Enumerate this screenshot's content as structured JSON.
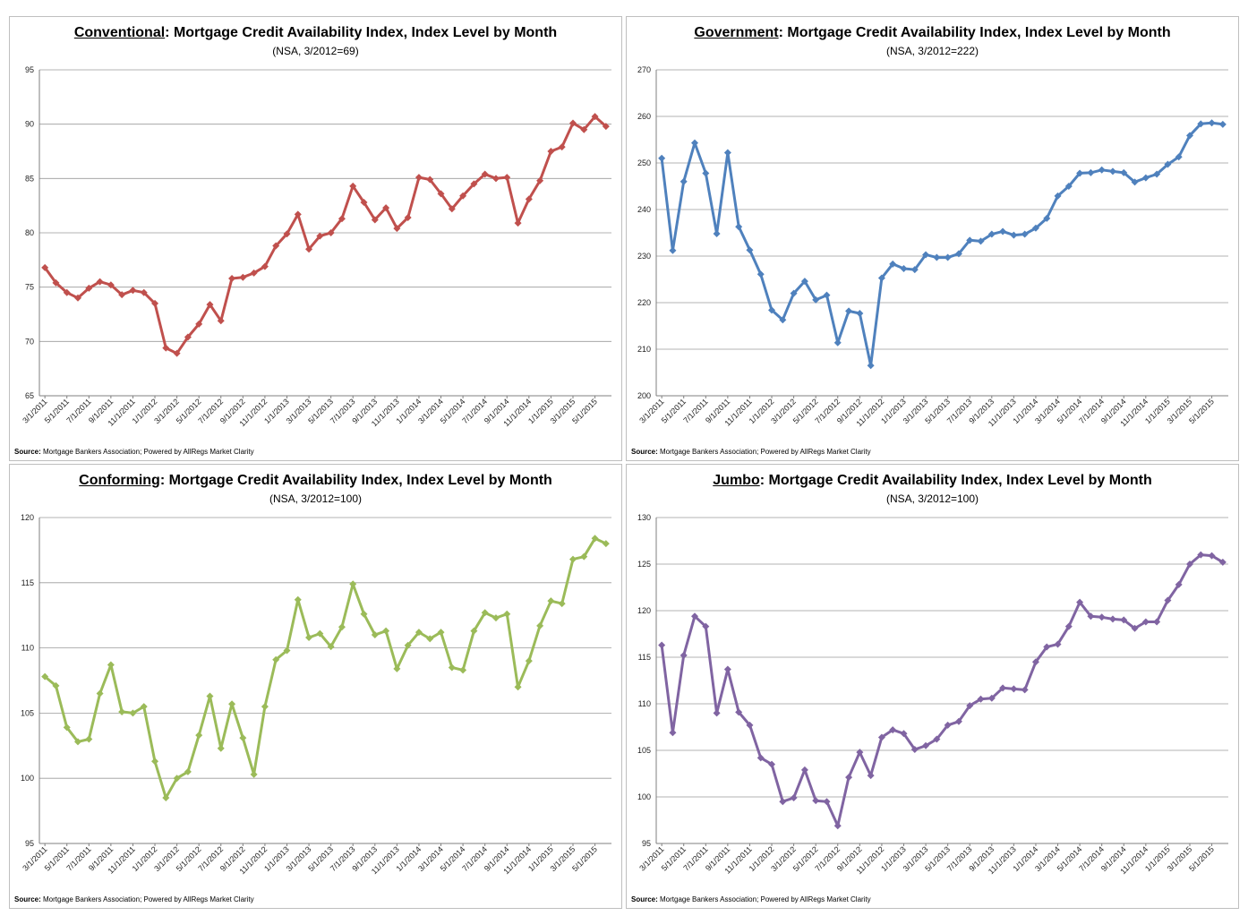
{
  "source": {
    "label": "Source:",
    "text": " Mortgage Bankers Association; Powered by AllRegs Market Clarity"
  },
  "chart_data": [
    {
      "type": "line",
      "title_segment": "Conventional",
      "title_rest": ": Mortgage Credit Availability Index, Index Level by Month",
      "subtitle": "(NSA, 3/2012=69)",
      "color": "#c0504d",
      "ylim": [
        65,
        95
      ],
      "yticks": [
        65,
        70,
        75,
        80,
        85,
        90,
        95
      ],
      "grid": "horizontal",
      "legend": "none",
      "x_tick_labels": [
        "3/1/2011",
        "5/1/2011",
        "7/1/2011",
        "9/1/2011",
        "11/1/2011",
        "1/1/2012",
        "3/1/2012",
        "5/1/2012",
        "7/1/2012",
        "9/1/2012",
        "11/1/2012",
        "1/1/2013",
        "3/1/2013",
        "5/1/2013",
        "7/1/2013",
        "9/1/2013",
        "11/1/2013",
        "1/1/2014",
        "3/1/2014",
        "5/1/2014",
        "7/1/2014",
        "9/1/2014",
        "11/1/2014",
        "1/1/2015",
        "3/1/2015",
        "5/1/2015"
      ],
      "series": [
        {
          "values": [
            76.8,
            75.4,
            74.5,
            74.0,
            74.9,
            75.5,
            75.2,
            74.3,
            74.7,
            74.5,
            73.5,
            69.4,
            68.9,
            70.4,
            71.6,
            73.4,
            71.9,
            75.8,
            75.9,
            76.3,
            76.9,
            78.8,
            79.9,
            81.7,
            78.5,
            79.7,
            80.0,
            81.3,
            84.3,
            82.8,
            81.2,
            82.3,
            80.4,
            81.4,
            85.1,
            84.9,
            83.6,
            82.2,
            83.4,
            84.5,
            85.4,
            85.0,
            85.1,
            80.9,
            83.1,
            84.8,
            87.5,
            87.9,
            90.1,
            89.5,
            90.7,
            89.8
          ]
        }
      ]
    },
    {
      "type": "line",
      "title_segment": "Government",
      "title_rest": ": Mortgage Credit Availability Index, Index Level by Month",
      "subtitle": "(NSA, 3/2012=222)",
      "color": "#4f81bd",
      "ylim": [
        200,
        270
      ],
      "yticks": [
        200,
        210,
        220,
        230,
        240,
        250,
        260,
        270
      ],
      "grid": "horizontal",
      "legend": "none",
      "x_tick_labels": [
        "3/1/2011",
        "5/1/2011",
        "7/1/2011",
        "9/1/2011",
        "11/1/2011",
        "1/1/2012",
        "3/1/2012",
        "5/1/2012",
        "7/1/2012",
        "9/1/2012",
        "11/1/2012",
        "1/1/2013",
        "3/1/2013",
        "5/1/2013",
        "7/1/2013",
        "9/1/2013",
        "11/1/2013",
        "1/1/2014",
        "3/1/2014",
        "5/1/2014",
        "7/1/2014",
        "9/1/2014",
        "11/1/2014",
        "1/1/2015",
        "3/1/2015",
        "5/1/2015"
      ],
      "series": [
        {
          "values": [
            251.0,
            231.2,
            246.0,
            254.3,
            247.8,
            234.8,
            252.2,
            236.3,
            231.3,
            226.1,
            218.4,
            216.3,
            222.0,
            224.6,
            220.6,
            221.6,
            211.4,
            218.2,
            217.7,
            206.5,
            225.3,
            228.3,
            227.3,
            227.1,
            230.3,
            229.7,
            229.7,
            230.5,
            233.4,
            233.2,
            234.7,
            235.3,
            234.5,
            234.7,
            236.0,
            238.1,
            242.9,
            245.0,
            247.8,
            247.9,
            248.5,
            248.2,
            247.9,
            245.9,
            246.8,
            247.6,
            249.7,
            251.3,
            255.9,
            258.4,
            258.6,
            258.3
          ]
        }
      ]
    },
    {
      "type": "line",
      "title_segment": "Conforming",
      "title_rest": ": Mortgage Credit Availability Index, Index Level by Month",
      "subtitle": "(NSA, 3/2012=100)",
      "color": "#9bbb59",
      "ylim": [
        95,
        120
      ],
      "yticks": [
        95,
        100,
        105,
        110,
        115,
        120
      ],
      "grid": "horizontal",
      "legend": "none",
      "x_tick_labels": [
        "3/1/2011",
        "5/1/2011",
        "7/1/2011",
        "9/1/2011",
        "11/1/2011",
        "1/1/2012",
        "3/1/2012",
        "5/1/2012",
        "7/1/2012",
        "9/1/2012",
        "11/1/2012",
        "1/1/2013",
        "3/1/2013",
        "5/1/2013",
        "7/1/2013",
        "9/1/2013",
        "11/1/2013",
        "1/1/2014",
        "3/1/2014",
        "5/1/2014",
        "7/1/2014",
        "9/1/2014",
        "11/1/2014",
        "1/1/2015",
        "3/1/2015",
        "5/1/2015"
      ],
      "series": [
        {
          "values": [
            107.8,
            107.1,
            103.9,
            102.8,
            103.0,
            106.5,
            108.7,
            105.1,
            105.0,
            105.5,
            101.3,
            98.5,
            100.0,
            100.5,
            103.3,
            106.3,
            102.3,
            105.7,
            103.1,
            100.3,
            105.5,
            109.1,
            109.8,
            113.7,
            110.8,
            111.1,
            110.1,
            111.6,
            114.9,
            112.6,
            111.0,
            111.3,
            108.4,
            110.2,
            111.2,
            110.7,
            111.2,
            108.5,
            108.3,
            111.3,
            112.7,
            112.3,
            112.6,
            107.0,
            109.0,
            111.7,
            113.6,
            113.4,
            116.8,
            117.0,
            118.4,
            118.0
          ]
        }
      ]
    },
    {
      "type": "line",
      "title_segment": "Jumbo",
      "title_rest": ": Mortgage Credit Availability Index, Index Level by Month",
      "subtitle": "(NSA, 3/2012=100)",
      "color": "#8064a2",
      "ylim": [
        95,
        130
      ],
      "yticks": [
        95,
        100,
        105,
        110,
        115,
        120,
        125,
        130
      ],
      "grid": "horizontal",
      "legend": "none",
      "x_tick_labels": [
        "3/1/2011",
        "5/1/2011",
        "7/1/2011",
        "9/1/2011",
        "11/1/2011",
        "1/1/2012",
        "3/1/2012",
        "5/1/2012",
        "7/1/2012",
        "9/1/2012",
        "11/1/2012",
        "1/1/2013",
        "3/1/2013",
        "5/1/2013",
        "7/1/2013",
        "9/1/2013",
        "11/1/2013",
        "1/1/2014",
        "3/1/2014",
        "5/1/2014",
        "7/1/2014",
        "9/1/2014",
        "11/1/2014",
        "1/1/2015",
        "3/1/2015",
        "5/1/2015"
      ],
      "series": [
        {
          "values": [
            116.3,
            106.9,
            115.2,
            119.4,
            118.3,
            109.0,
            113.7,
            109.1,
            107.7,
            104.2,
            103.5,
            99.5,
            99.9,
            102.9,
            99.6,
            99.5,
            96.9,
            102.1,
            104.8,
            102.3,
            106.4,
            107.2,
            106.8,
            105.1,
            105.5,
            106.2,
            107.7,
            108.1,
            109.8,
            110.5,
            110.6,
            111.7,
            111.6,
            111.5,
            114.5,
            116.1,
            116.4,
            118.3,
            120.9,
            119.4,
            119.3,
            119.1,
            119.0,
            118.1,
            118.8,
            118.8,
            121.1,
            122.8,
            125.0,
            126.0,
            125.9,
            125.2
          ]
        }
      ]
    }
  ]
}
